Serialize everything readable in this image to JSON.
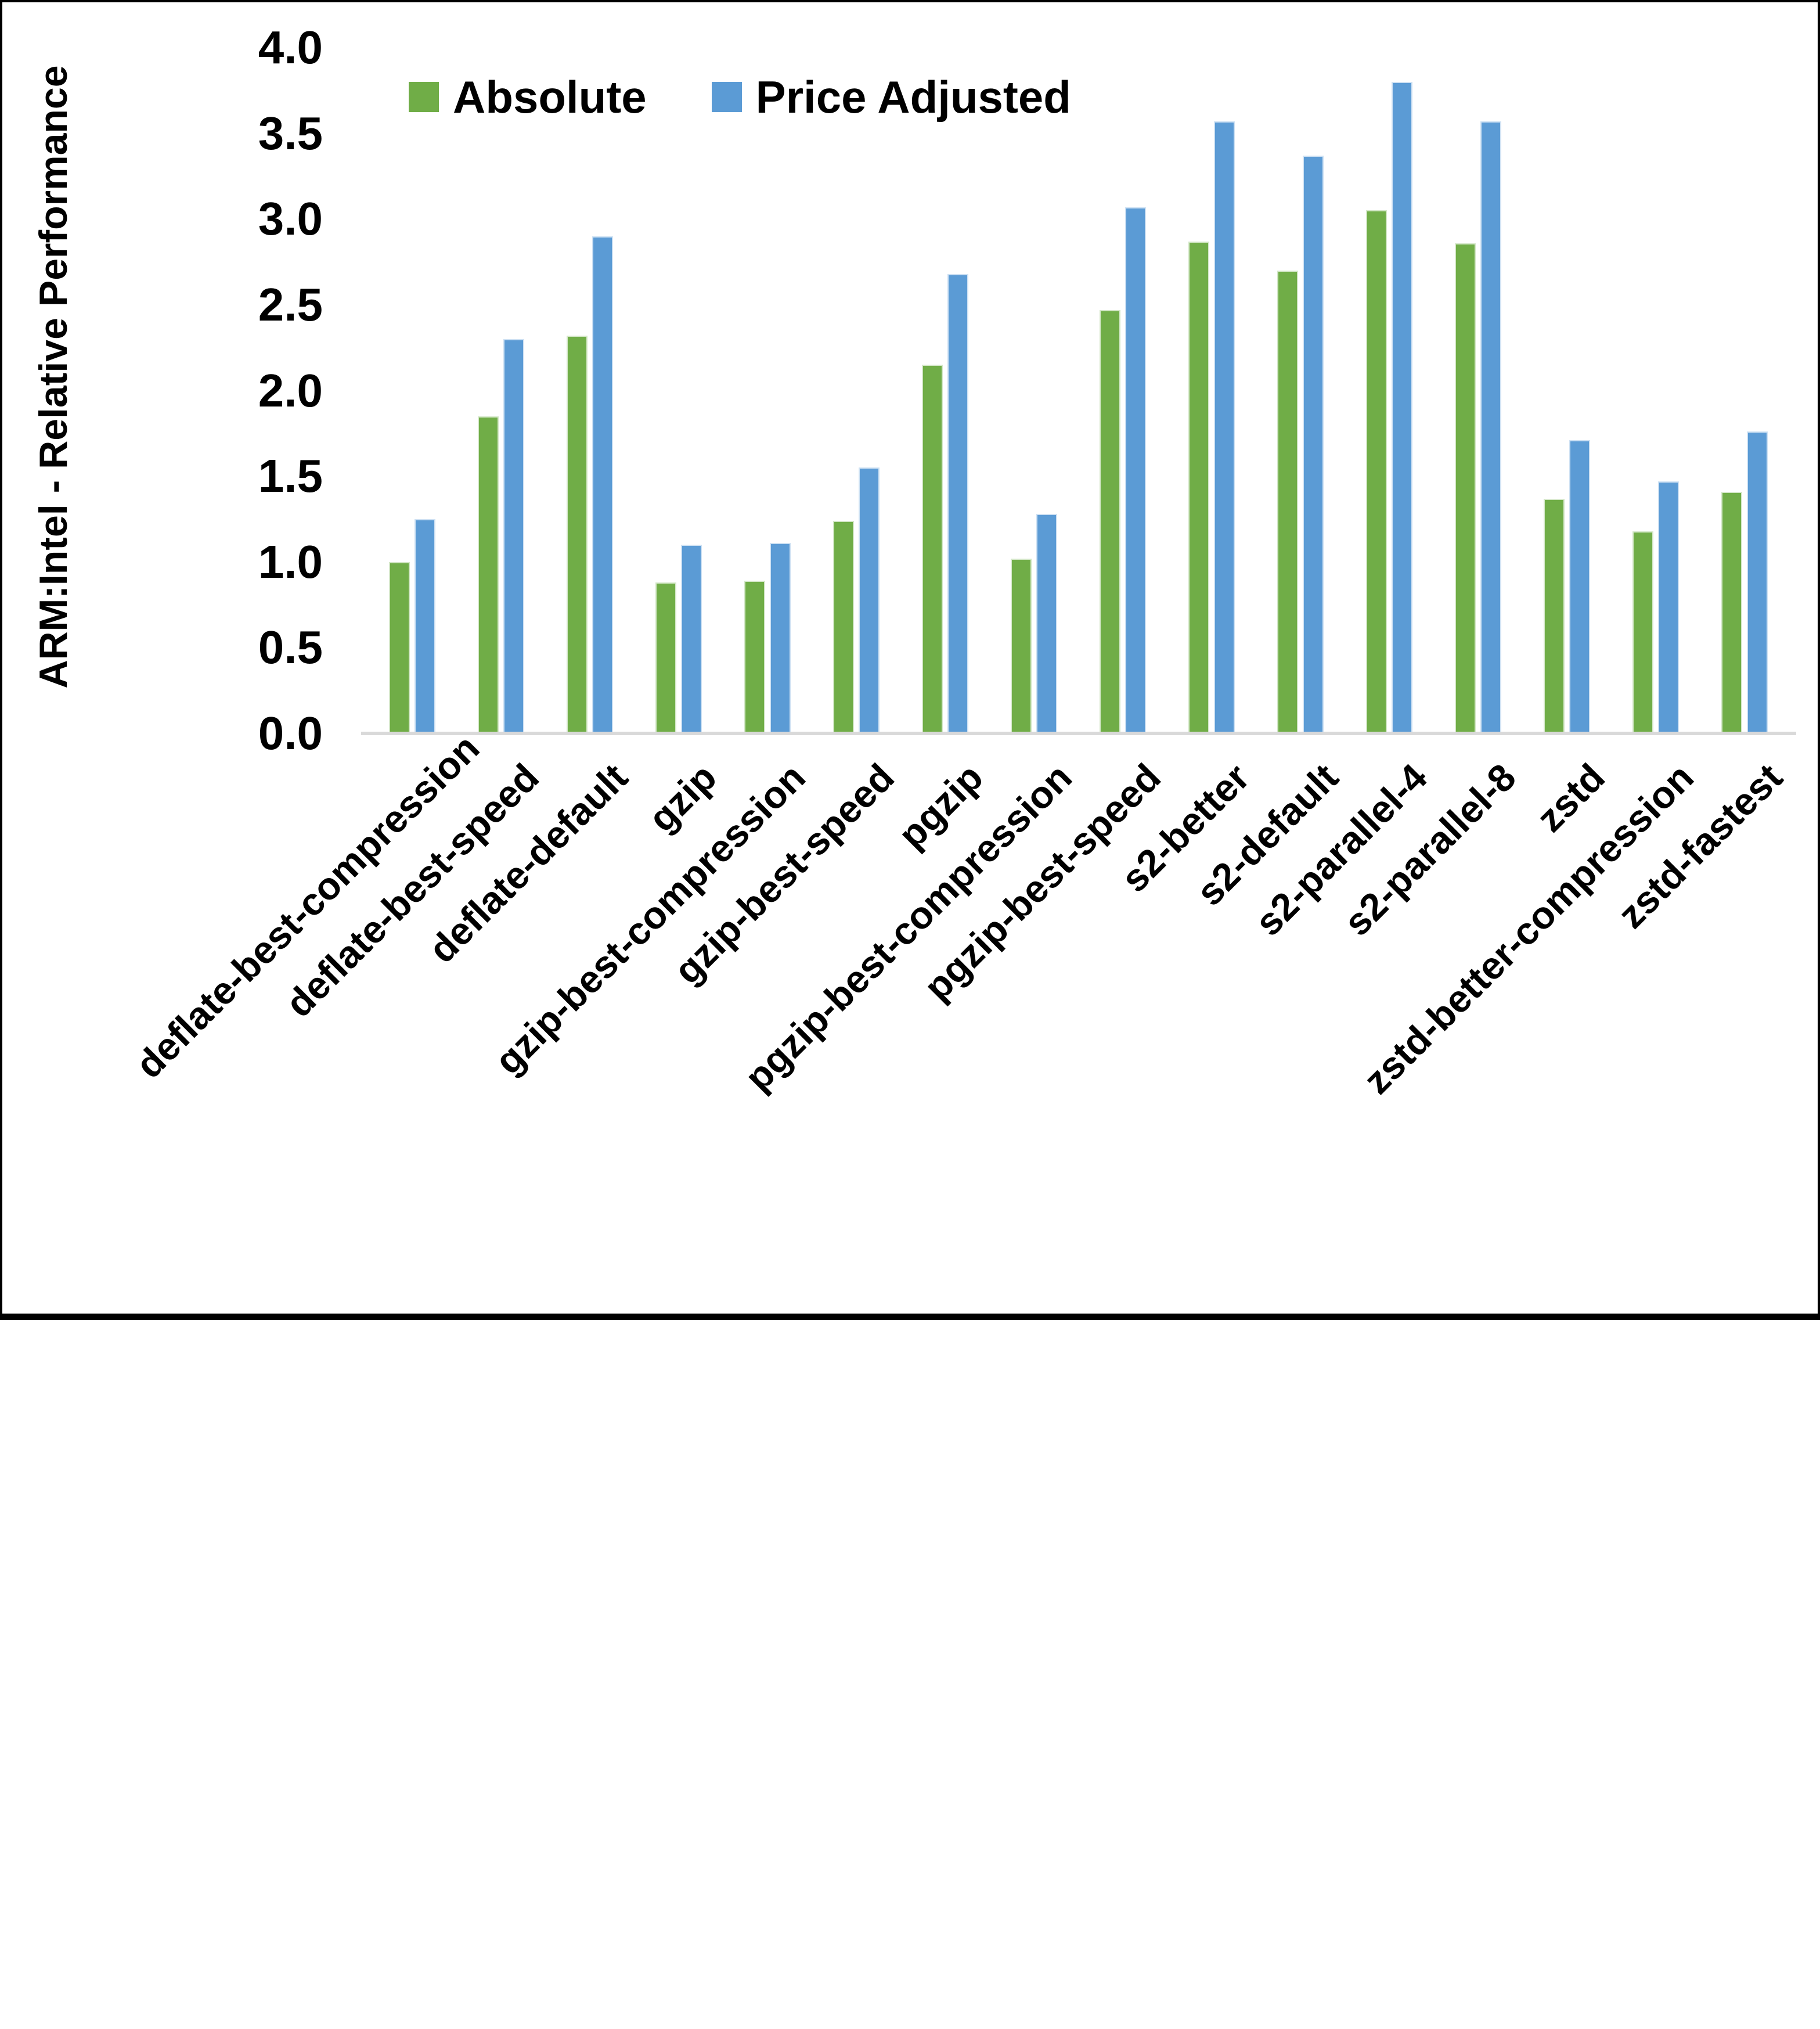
{
  "chart_data": {
    "type": "bar",
    "title": "",
    "xlabel": "",
    "ylabel": "ARM:Intel - Relative Performance",
    "ylim": [
      0.0,
      4.0
    ],
    "ytick_step": 0.5,
    "yticks": [
      "0.0",
      "0.5",
      "1.0",
      "1.5",
      "2.0",
      "2.5",
      "3.0",
      "3.5",
      "4.0"
    ],
    "grid": false,
    "legend_position": "top-center",
    "categories": [
      "deflate-best-compression",
      "deflate-best-speed",
      "deflate-default",
      "gzip",
      "gzip-best-compression",
      "gzip-best-speed",
      "pgzip",
      "pgzip-best-compression",
      "pgzip-best-speed",
      "s2-better",
      "s2-default",
      "s2-parallel-4",
      "s2-parallel-8",
      "zstd",
      "zstd-better-compression",
      "zstd-fastest"
    ],
    "series": [
      {
        "name": "Absolute",
        "color": "#70AD47",
        "values": [
          1.0,
          1.85,
          2.32,
          0.88,
          0.89,
          1.24,
          2.15,
          1.02,
          2.47,
          2.87,
          2.7,
          3.05,
          2.86,
          1.37,
          1.18,
          1.41
        ]
      },
      {
        "name": "Price Adjusted",
        "color": "#5B9BD5",
        "values": [
          1.25,
          2.3,
          2.9,
          1.1,
          1.11,
          1.55,
          2.68,
          1.28,
          3.07,
          3.57,
          3.37,
          3.8,
          3.57,
          1.71,
          1.47,
          1.76
        ]
      }
    ]
  },
  "colors": {
    "axis_line": "#D9D9D9",
    "text": "#000000",
    "background": "#FFFFFF",
    "frame_border": "#000000"
  }
}
